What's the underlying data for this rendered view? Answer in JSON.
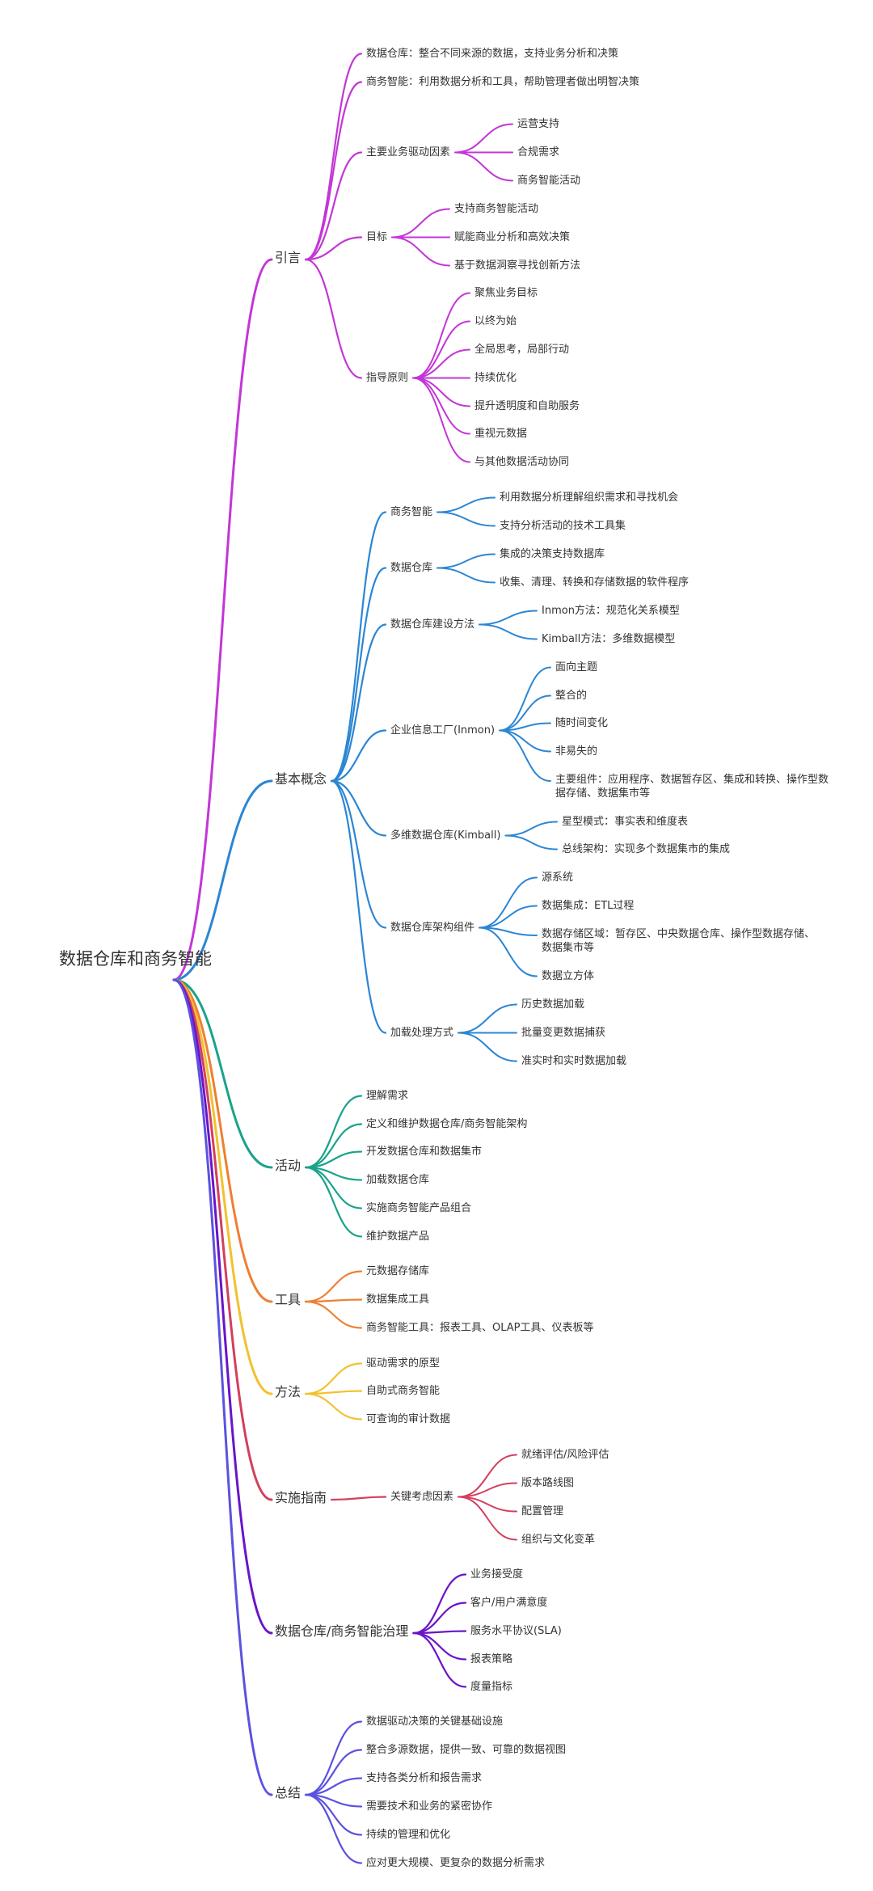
{
  "root": {
    "label": "数据仓库和商务智能"
  },
  "branches": [
    {
      "id": "b0",
      "label": "引言",
      "color": "#c336d6",
      "children": [
        {
          "id": "b0c0",
          "label": "数据仓库：整合不同来源的数据，支持业务分析和决策"
        },
        {
          "id": "b0c1",
          "label": "商务智能：利用数据分析和工具，帮助管理者做出明智决策"
        },
        {
          "id": "b0c2",
          "label": "主要业务驱动因素",
          "children": [
            {
              "id": "b0c2a",
              "label": "运营支持"
            },
            {
              "id": "b0c2b",
              "label": "合规需求"
            },
            {
              "id": "b0c2c",
              "label": "商务智能活动"
            }
          ]
        },
        {
          "id": "b0c3",
          "label": "目标",
          "children": [
            {
              "id": "b0c3a",
              "label": "支持商务智能活动"
            },
            {
              "id": "b0c3b",
              "label": "赋能商业分析和高效决策"
            },
            {
              "id": "b0c3c",
              "label": "基于数据洞察寻找创新方法"
            }
          ]
        },
        {
          "id": "b0c4",
          "label": "指导原则",
          "children": [
            {
              "id": "b0c4a",
              "label": "聚焦业务目标"
            },
            {
              "id": "b0c4b",
              "label": "以终为始"
            },
            {
              "id": "b0c4c",
              "label": "全局思考，局部行动"
            },
            {
              "id": "b0c4d",
              "label": "持续优化"
            },
            {
              "id": "b0c4e",
              "label": "提升透明度和自助服务"
            },
            {
              "id": "b0c4f",
              "label": "重视元数据"
            },
            {
              "id": "b0c4g",
              "label": "与其他数据活动协同"
            }
          ]
        }
      ]
    },
    {
      "id": "b1",
      "label": "基本概念",
      "color": "#2b86d4",
      "children": [
        {
          "id": "b1c0",
          "label": "商务智能",
          "children": [
            {
              "id": "b1c0a",
              "label": "利用数据分析理解组织需求和寻找机会"
            },
            {
              "id": "b1c0b",
              "label": "支持分析活动的技术工具集"
            }
          ]
        },
        {
          "id": "b1c1",
          "label": "数据仓库",
          "children": [
            {
              "id": "b1c1a",
              "label": "集成的决策支持数据库"
            },
            {
              "id": "b1c1b",
              "label": "收集、清理、转换和存储数据的软件程序"
            }
          ]
        },
        {
          "id": "b1c2",
          "label": "数据仓库建设方法",
          "children": [
            {
              "id": "b1c2a",
              "label": "Inmon方法：规范化关系模型"
            },
            {
              "id": "b1c2b",
              "label": "Kimball方法：多维数据模型"
            }
          ]
        },
        {
          "id": "b1c3",
          "label": "企业信息工厂(Inmon)",
          "children": [
            {
              "id": "b1c3a",
              "label": "面向主题"
            },
            {
              "id": "b1c3b",
              "label": "整合的"
            },
            {
              "id": "b1c3c",
              "label": "随时间变化"
            },
            {
              "id": "b1c3d",
              "label": "非易失的"
            },
            {
              "id": "b1c3e",
              "label": "主要组件：应用程序、数据暂存区、集成和转换、操作型数据存储、数据集市等"
            }
          ]
        },
        {
          "id": "b1c4",
          "label": "多维数据仓库(Kimball)",
          "children": [
            {
              "id": "b1c4a",
              "label": "星型模式：事实表和维度表"
            },
            {
              "id": "b1c4b",
              "label": "总线架构：实现多个数据集市的集成"
            }
          ]
        },
        {
          "id": "b1c5",
          "label": "数据仓库架构组件",
          "children": [
            {
              "id": "b1c5a",
              "label": "源系统"
            },
            {
              "id": "b1c5b",
              "label": "数据集成：ETL过程"
            },
            {
              "id": "b1c5c",
              "label": "数据存储区域：暂存区、中央数据仓库、操作型数据存储、数据集市等"
            },
            {
              "id": "b1c5d",
              "label": "数据立方体"
            }
          ]
        },
        {
          "id": "b1c6",
          "label": "加载处理方式",
          "children": [
            {
              "id": "b1c6a",
              "label": "历史数据加载"
            },
            {
              "id": "b1c6b",
              "label": "批量变更数据捕获"
            },
            {
              "id": "b1c6c",
              "label": "准实时和实时数据加载"
            }
          ]
        }
      ]
    },
    {
      "id": "b2",
      "label": "活动",
      "color": "#1aa38a",
      "children": [
        {
          "id": "b2c0",
          "label": "理解需求"
        },
        {
          "id": "b2c1",
          "label": "定义和维护数据仓库/商务智能架构"
        },
        {
          "id": "b2c2",
          "label": "开发数据仓库和数据集市"
        },
        {
          "id": "b2c3",
          "label": "加载数据仓库"
        },
        {
          "id": "b2c4",
          "label": "实施商务智能产品组合"
        },
        {
          "id": "b2c5",
          "label": "维护数据产品"
        }
      ]
    },
    {
      "id": "b3",
      "label": "工具",
      "color": "#ee7f33",
      "children": [
        {
          "id": "b3c0",
          "label": "元数据存储库"
        },
        {
          "id": "b3c1",
          "label": "数据集成工具"
        },
        {
          "id": "b3c2",
          "label": "商务智能工具：报表工具、OLAP工具、仪表板等"
        }
      ]
    },
    {
      "id": "b4",
      "label": "方法",
      "color": "#f2c12e",
      "children": [
        {
          "id": "b4c0",
          "label": "驱动需求的原型"
        },
        {
          "id": "b4c1",
          "label": "自助式商务智能"
        },
        {
          "id": "b4c2",
          "label": "可查询的审计数据"
        }
      ]
    },
    {
      "id": "b5",
      "label": "实施指南",
      "color": "#d2405c",
      "children": [
        {
          "id": "b5c0",
          "label": "关键考虑因素",
          "children": [
            {
              "id": "b5c0a",
              "label": "就绪评估/风险评估"
            },
            {
              "id": "b5c0b",
              "label": "版本路线图"
            },
            {
              "id": "b5c0c",
              "label": "配置管理"
            },
            {
              "id": "b5c0d",
              "label": "组织与文化变革"
            }
          ]
        }
      ]
    },
    {
      "id": "b6",
      "label": "数据仓库/商务智能治理",
      "color": "#6a14c9",
      "children": [
        {
          "id": "b6c0",
          "label": "业务接受度"
        },
        {
          "id": "b6c1",
          "label": "客户/用户满意度"
        },
        {
          "id": "b6c2",
          "label": "服务水平协议(SLA)"
        },
        {
          "id": "b6c3",
          "label": "报表策略"
        },
        {
          "id": "b6c4",
          "label": "度量指标"
        }
      ]
    },
    {
      "id": "b7",
      "label": "总结",
      "color": "#5b52e0",
      "children": [
        {
          "id": "b7c0",
          "label": "数据驱动决策的关键基础设施"
        },
        {
          "id": "b7c1",
          "label": "整合多源数据，提供一致、可靠的数据视图"
        },
        {
          "id": "b7c2",
          "label": "支持各类分析和报告需求"
        },
        {
          "id": "b7c3",
          "label": "需要技术和业务的紧密协作"
        },
        {
          "id": "b7c4",
          "label": "持续的管理和优化"
        },
        {
          "id": "b7c5",
          "label": "应对更大规模、更复杂的数据分析需求"
        }
      ]
    }
  ]
}
